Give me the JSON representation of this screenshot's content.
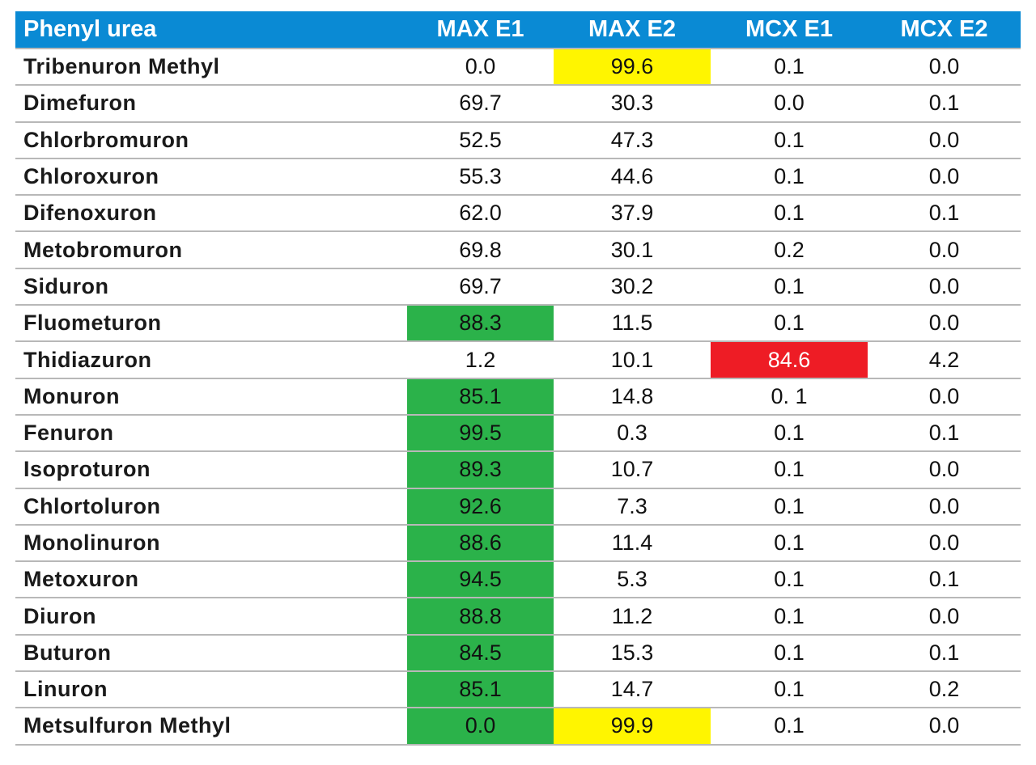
{
  "colors": {
    "header_bg": "#0a8ad4",
    "header_text": "#ffffff",
    "highlight_green": "#2bb24a",
    "highlight_yellow": "#fff500",
    "highlight_red": "#ee1c25",
    "row_divider": "#b8b8b8"
  },
  "table": {
    "headers": [
      "Phenyl urea",
      "MAX E1",
      "MAX E2",
      "MCX E1",
      "MCX E2"
    ],
    "rows": [
      {
        "name": "Tribenuron Methyl",
        "values": [
          "0.0",
          "99.6",
          "0.1",
          "0.0"
        ],
        "highlight": [
          null,
          "yellow",
          null,
          null
        ]
      },
      {
        "name": "Dimefuron",
        "values": [
          "69.7",
          "30.3",
          "0.0",
          "0.1"
        ],
        "highlight": [
          null,
          null,
          null,
          null
        ]
      },
      {
        "name": "Chlorbromuron",
        "values": [
          "52.5",
          "47.3",
          "0.1",
          "0.0"
        ],
        "highlight": [
          null,
          null,
          null,
          null
        ]
      },
      {
        "name": "Chloroxuron",
        "values": [
          "55.3",
          "44.6",
          "0.1",
          "0.0"
        ],
        "highlight": [
          null,
          null,
          null,
          null
        ]
      },
      {
        "name": "Difenoxuron",
        "values": [
          "62.0",
          "37.9",
          "0.1",
          "0.1"
        ],
        "highlight": [
          null,
          null,
          null,
          null
        ]
      },
      {
        "name": "Metobromuron",
        "values": [
          "69.8",
          "30.1",
          "0.2",
          "0.0"
        ],
        "highlight": [
          null,
          null,
          null,
          null
        ]
      },
      {
        "name": "Siduron",
        "values": [
          "69.7",
          "30.2",
          "0.1",
          "0.0"
        ],
        "highlight": [
          null,
          null,
          null,
          null
        ]
      },
      {
        "name": "Fluometuron",
        "values": [
          "88.3",
          "11.5",
          "0.1",
          "0.0"
        ],
        "highlight": [
          "green",
          null,
          null,
          null
        ]
      },
      {
        "name": "Thidiazuron",
        "values": [
          "1.2",
          "10.1",
          "84.6",
          "4.2"
        ],
        "highlight": [
          null,
          null,
          "red",
          null
        ]
      },
      {
        "name": "Monuron",
        "values": [
          "85.1",
          "14.8",
          "0. 1",
          "0.0"
        ],
        "highlight": [
          "green",
          null,
          null,
          null
        ]
      },
      {
        "name": "Fenuron",
        "values": [
          "99.5",
          "0.3",
          "0.1",
          "0.1"
        ],
        "highlight": [
          "green",
          null,
          null,
          null
        ]
      },
      {
        "name": "Isoproturon",
        "values": [
          "89.3",
          "10.7",
          "0.1",
          "0.0"
        ],
        "highlight": [
          "green",
          null,
          null,
          null
        ]
      },
      {
        "name": "Chlortoluron",
        "values": [
          "92.6",
          "7.3",
          "0.1",
          "0.0"
        ],
        "highlight": [
          "green",
          null,
          null,
          null
        ]
      },
      {
        "name": "Monolinuron",
        "values": [
          "88.6",
          "11.4",
          "0.1",
          "0.0"
        ],
        "highlight": [
          "green",
          null,
          null,
          null
        ]
      },
      {
        "name": "Metoxuron",
        "values": [
          "94.5",
          "5.3",
          "0.1",
          "0.1"
        ],
        "highlight": [
          "green",
          null,
          null,
          null
        ]
      },
      {
        "name": "Diuron",
        "values": [
          "88.8",
          "11.2",
          "0.1",
          "0.0"
        ],
        "highlight": [
          "green",
          null,
          null,
          null
        ]
      },
      {
        "name": "Buturon",
        "values": [
          "84.5",
          "15.3",
          "0.1",
          "0.1"
        ],
        "highlight": [
          "green",
          null,
          null,
          null
        ]
      },
      {
        "name": "Linuron",
        "values": [
          "85.1",
          "14.7",
          "0.1",
          "0.2"
        ],
        "highlight": [
          "green",
          null,
          null,
          null
        ]
      },
      {
        "name": "Metsulfuron Methyl",
        "values": [
          "0.0",
          "99.9",
          "0.1",
          "0.0"
        ],
        "highlight": [
          "green",
          "yellow",
          null,
          null
        ]
      }
    ]
  }
}
